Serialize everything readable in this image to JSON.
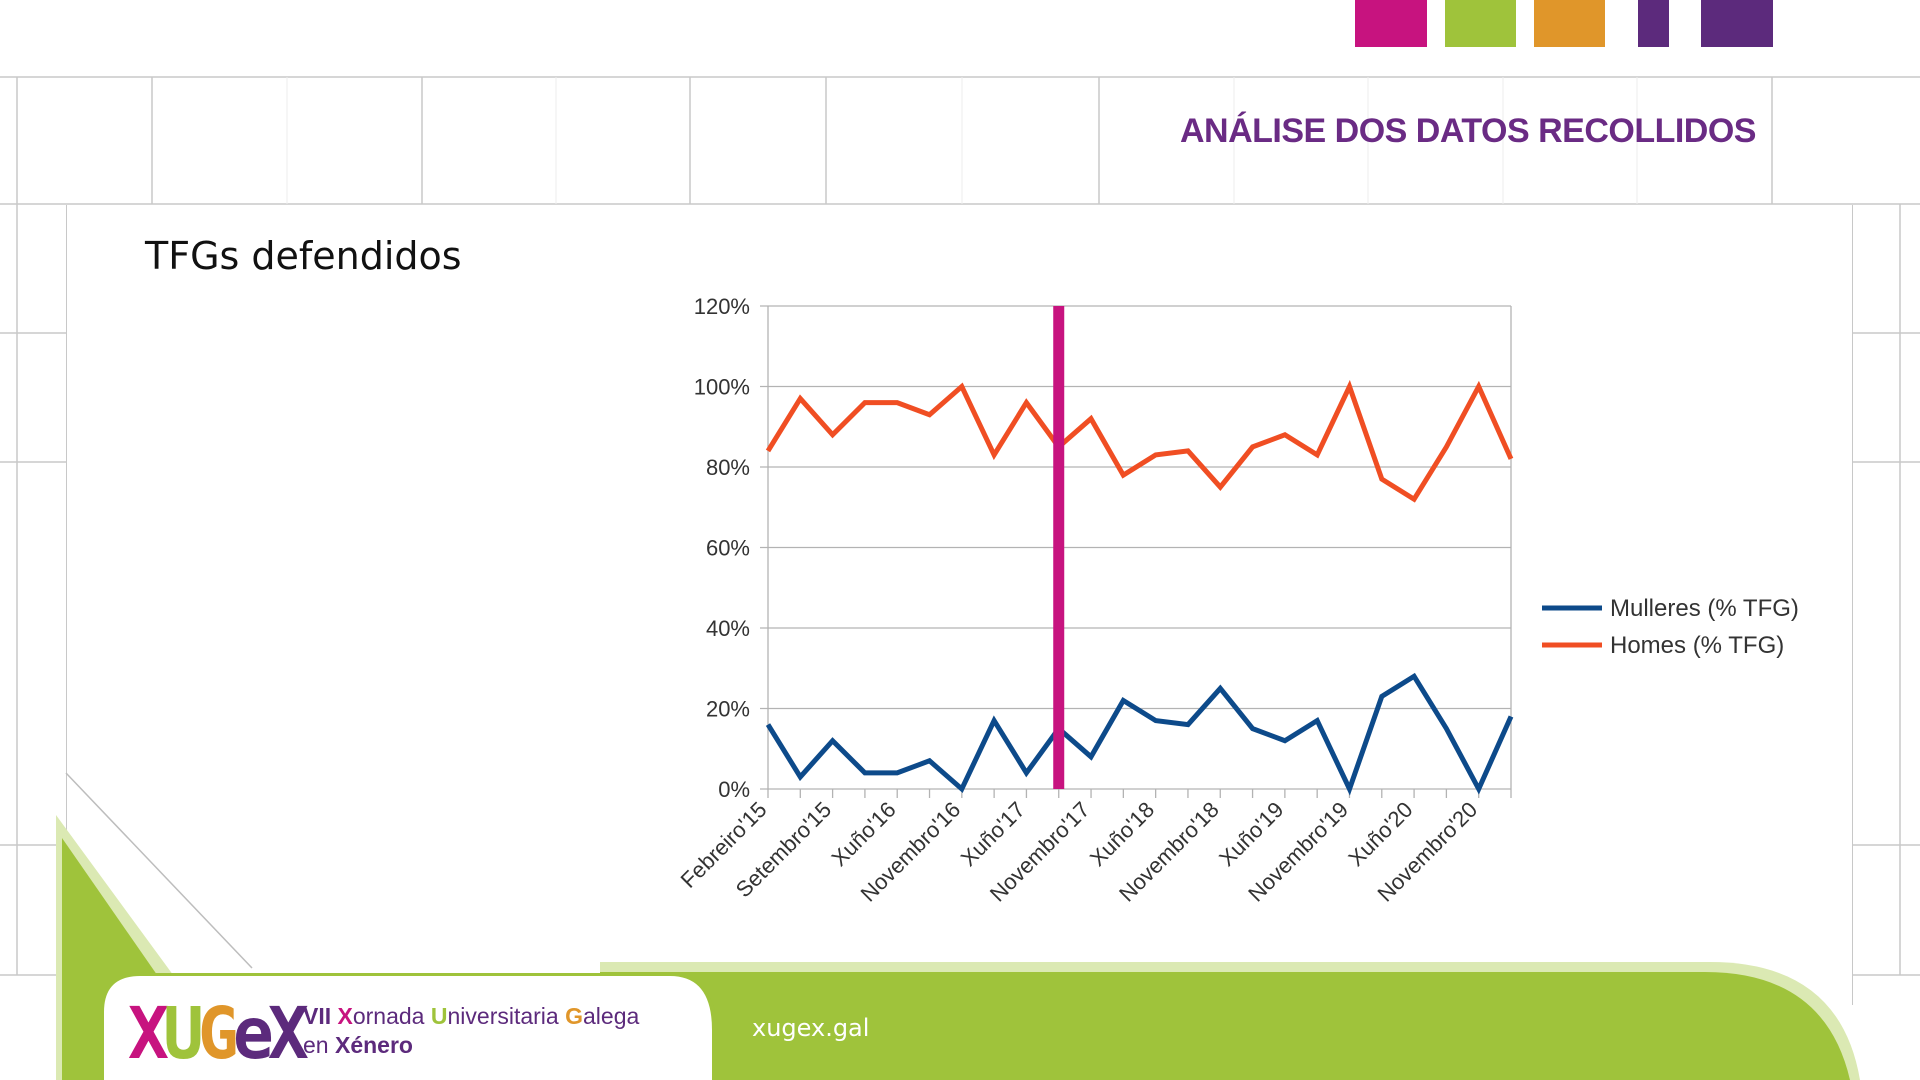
{
  "header": {
    "title": "ANÁLISE DOS DATOS RECOLLIDOS",
    "squares": [
      "#c7137f",
      "#9fc33b",
      "#e0962a",
      "#5c2a7c",
      "#5c2a7c"
    ]
  },
  "slide": {
    "title": "TFGs defendidos"
  },
  "footer": {
    "logo": {
      "letters": [
        "X",
        "U",
        "G",
        "e",
        "X"
      ],
      "colors": [
        "#c7137f",
        "#9fc33b",
        "#e0962a",
        "#5c2a7c",
        "#5c2a7c"
      ]
    },
    "line1": [
      {
        "t": "VII ",
        "c": "#5c2a7c"
      },
      {
        "t": "X",
        "c": "#c7137f"
      },
      {
        "t": "ornada ",
        "c": "#5c2a7c"
      },
      {
        "t": "U",
        "c": "#9fc33b"
      },
      {
        "t": "niversitaria ",
        "c": "#5c2a7c"
      },
      {
        "t": "G",
        "c": "#e0962a"
      },
      {
        "t": "alega",
        "c": "#5c2a7c"
      }
    ],
    "line2": [
      {
        "t": "en ",
        "c": "#5c2a7c"
      },
      {
        "t": "Xénero",
        "c": "#5c2a7c"
      }
    ],
    "url": "xugex.gal",
    "green": "#9fc33b"
  },
  "chart_data": {
    "type": "line",
    "categories": [
      "Febreiro'15",
      "",
      "Setembro'15",
      "",
      "Xuño'16",
      "",
      "Novembro'16",
      "",
      "Xuño'17",
      "",
      "Novembro'17",
      "",
      "Xuño'18",
      "",
      "Novembro'18",
      "",
      "Xuño'19",
      "",
      "Novembro'19",
      "",
      "Xuño'20",
      "",
      "Novembro'20",
      ""
    ],
    "series": [
      {
        "name": "Mulleres (% TFG)",
        "color": "#0d4a8a",
        "values": [
          16,
          3,
          12,
          4,
          4,
          7,
          0,
          17,
          4,
          15,
          8,
          22,
          17,
          16,
          25,
          15,
          12,
          17,
          0,
          23,
          28,
          15,
          0,
          18
        ]
      },
      {
        "name": "Homes (% TFG)",
        "color": "#f04e23",
        "values": [
          84,
          97,
          88,
          96,
          96,
          93,
          100,
          83,
          96,
          85,
          92,
          78,
          83,
          84,
          75,
          85,
          88,
          83,
          100,
          77,
          72,
          85,
          100,
          82
        ]
      }
    ],
    "ylim": [
      0,
      120
    ],
    "yticks": [
      "0%",
      "20%",
      "40%",
      "60%",
      "80%",
      "100%",
      "120%"
    ],
    "yunit": "%",
    "marker": {
      "position_index": 9,
      "color": "#c7137f"
    },
    "grid": true,
    "legend": "right"
  }
}
